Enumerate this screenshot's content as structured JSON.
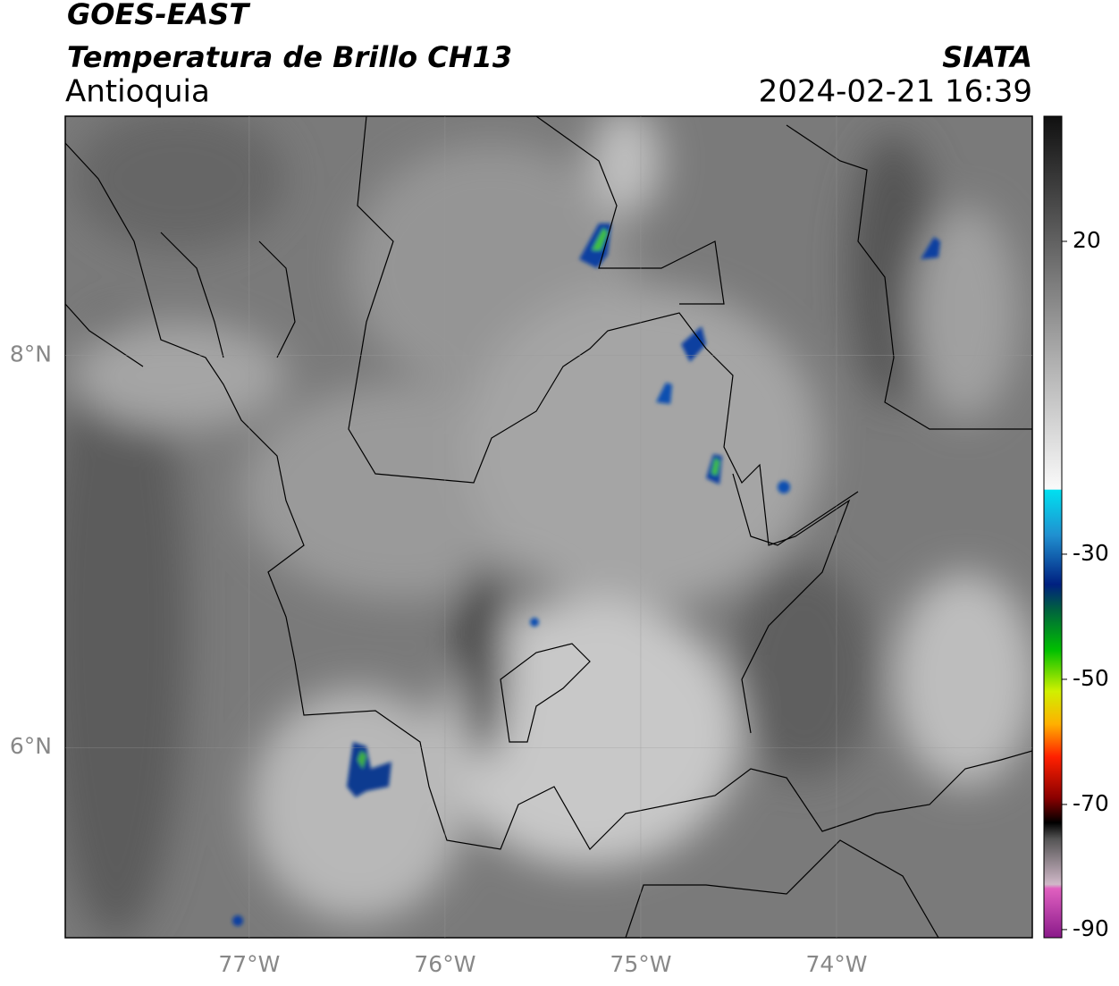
{
  "header": {
    "title": "GOES-EAST",
    "subtitle": "Temperatura de Brillo CH13",
    "region": "Antioquia",
    "source": "SIATA",
    "datetime": "2024-02-21 16:39"
  },
  "map": {
    "xlim": [
      -77.94,
      -73.0
    ],
    "ylim": [
      5.03,
      9.22
    ],
    "xticks": [
      {
        "value": -77,
        "label": "77°W"
      },
      {
        "value": -76,
        "label": "76°W"
      },
      {
        "value": -75,
        "label": "75°W"
      },
      {
        "value": -74,
        "label": "74°W"
      }
    ],
    "yticks": [
      {
        "value": 8,
        "label": "8°N"
      },
      {
        "value": 6,
        "label": "6°N"
      }
    ]
  },
  "colorbar": {
    "lim": [
      -91.3,
      40
    ],
    "ticks": [
      20,
      -30,
      -50,
      -70,
      -90
    ]
  }
}
